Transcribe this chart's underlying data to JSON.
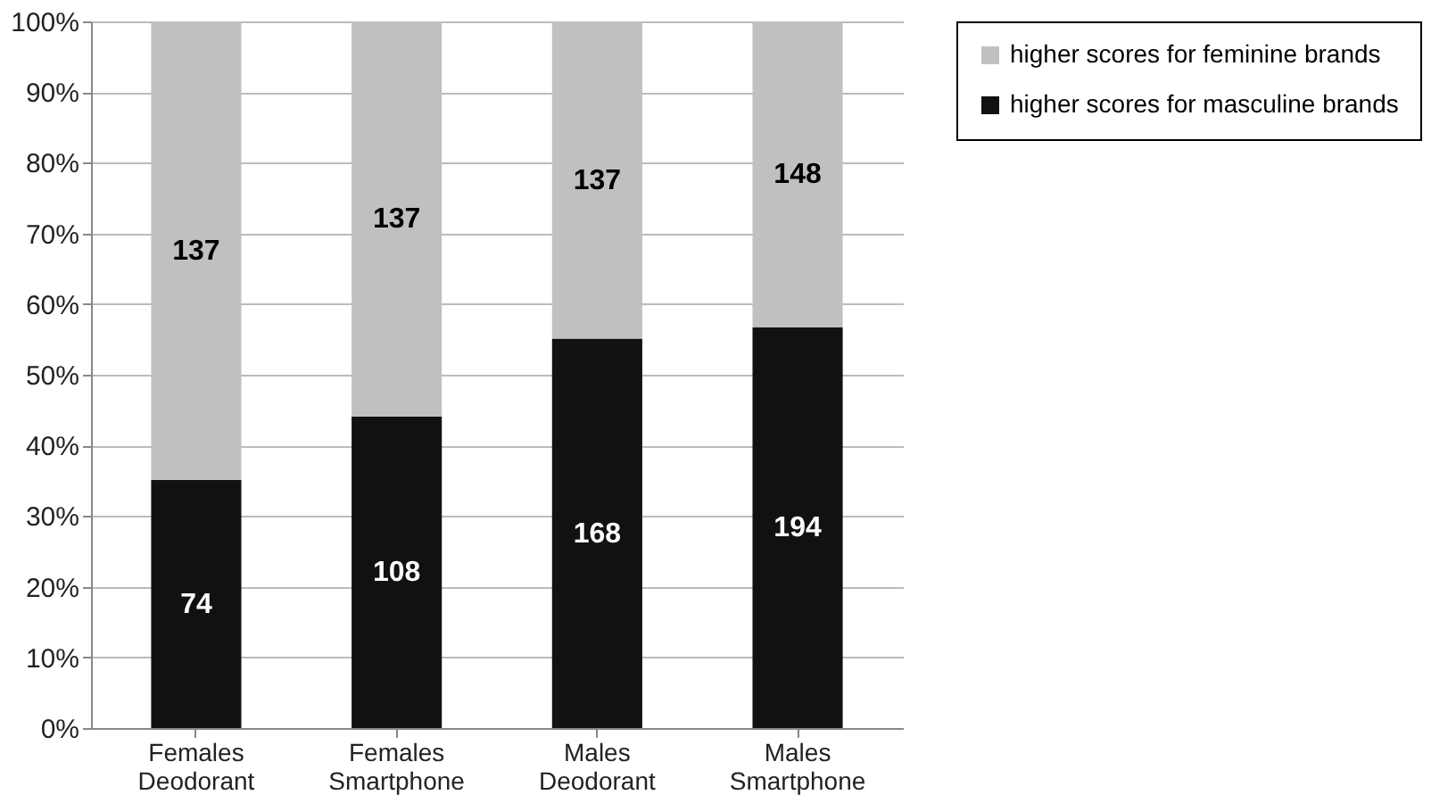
{
  "chart_data": {
    "type": "bar",
    "stacked": true,
    "categories": [
      "Females Deodorant",
      "Females Smartphone",
      "Males Deodorant",
      "Males Smartphone"
    ],
    "series": [
      {
        "name": "higher scores for masculine brands",
        "color": "#111111",
        "values": [
          35.1,
          44.1,
          55.1,
          56.7
        ]
      },
      {
        "name": "higher scores for feminine brands",
        "color": "#c0c0c0",
        "values": [
          64.9,
          55.9,
          44.9,
          43.3
        ]
      }
    ],
    "annotations": [
      "74",
      "108",
      "168",
      "194",
      "137",
      "137",
      "137",
      "148"
    ],
    "ylim": [
      0,
      100
    ],
    "yticks": [
      {
        "value": 0,
        "label": "0%"
      },
      {
        "value": 10,
        "label": "10%"
      },
      {
        "value": 20,
        "label": "20%"
      },
      {
        "value": 30,
        "label": "30%"
      },
      {
        "value": 40,
        "label": "40%"
      },
      {
        "value": 50,
        "label": "50%"
      },
      {
        "value": 60,
        "label": "60%"
      },
      {
        "value": 70,
        "label": "70%"
      },
      {
        "value": 80,
        "label": "80%"
      },
      {
        "value": 90,
        "label": "90%"
      },
      {
        "value": 100,
        "label": "100%"
      }
    ],
    "grid": "y",
    "legend": "right"
  }
}
